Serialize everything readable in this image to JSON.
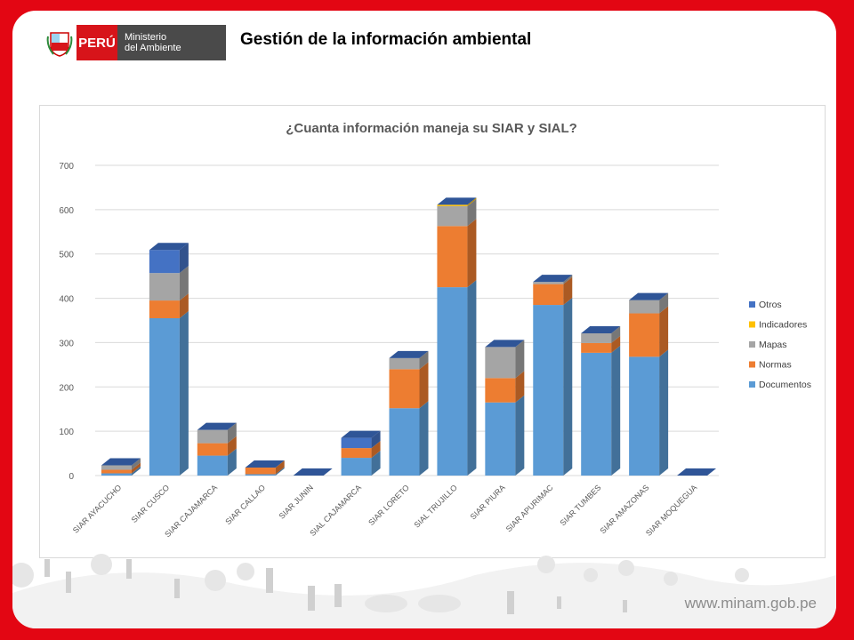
{
  "header": {
    "logo_peru": "PERÚ",
    "logo_ministry_line1": "Ministerio",
    "logo_ministry_line2": "del Ambiente",
    "slide_title": "Gestión de la información ambiental"
  },
  "footer": {
    "url": "www.minam.gob.pe"
  },
  "colors": {
    "frame_red": "#e30613",
    "Documentos": "#5b9bd5",
    "Normas": "#ed7d31",
    "Mapas": "#a5a5a5",
    "Indicadores": "#ffc000",
    "Otros": "#4472c4"
  },
  "chart_data": {
    "type": "bar",
    "stacked": true,
    "title": "¿Cuanta información maneja su SIAR y SIAL?",
    "categories": [
      "SIAR AYACUCHO",
      "SIAR CUSCO",
      "SIAR CAJAMARCA",
      "SIAR CALLAO",
      "SIAR JUNIN",
      "SIAL CAJAMARCA",
      "SIAR LORETO",
      "SIAL TRUJILLO",
      "SIAR PIURA",
      "SIAR APURIMAC",
      "SIAR TUMBES",
      "SIAR AMAZONAS",
      "SIAR MOQUEGUA"
    ],
    "series": [
      {
        "name": "Documentos",
        "values": [
          5,
          355,
          45,
          3,
          0,
          40,
          152,
          425,
          165,
          385,
          277,
          268,
          0
        ]
      },
      {
        "name": "Normas",
        "values": [
          8,
          40,
          28,
          15,
          0,
          22,
          88,
          138,
          55,
          47,
          22,
          98,
          0
        ]
      },
      {
        "name": "Mapas",
        "values": [
          10,
          62,
          30,
          0,
          0,
          0,
          25,
          45,
          70,
          5,
          22,
          30,
          0
        ]
      },
      {
        "name": "Indicadores",
        "values": [
          0,
          0,
          0,
          0,
          0,
          0,
          0,
          3,
          0,
          0,
          0,
          0,
          0
        ]
      },
      {
        "name": "Otros",
        "values": [
          0,
          52,
          0,
          0,
          0,
          23,
          0,
          0,
          0,
          0,
          0,
          0,
          0
        ]
      }
    ],
    "legend_order": [
      "Otros",
      "Indicadores",
      "Mapas",
      "Normas",
      "Documentos"
    ],
    "ylim": [
      0,
      700
    ],
    "yticks": [
      0,
      100,
      200,
      300,
      400,
      500,
      600,
      700
    ],
    "grid": true,
    "legend_position": "right"
  }
}
